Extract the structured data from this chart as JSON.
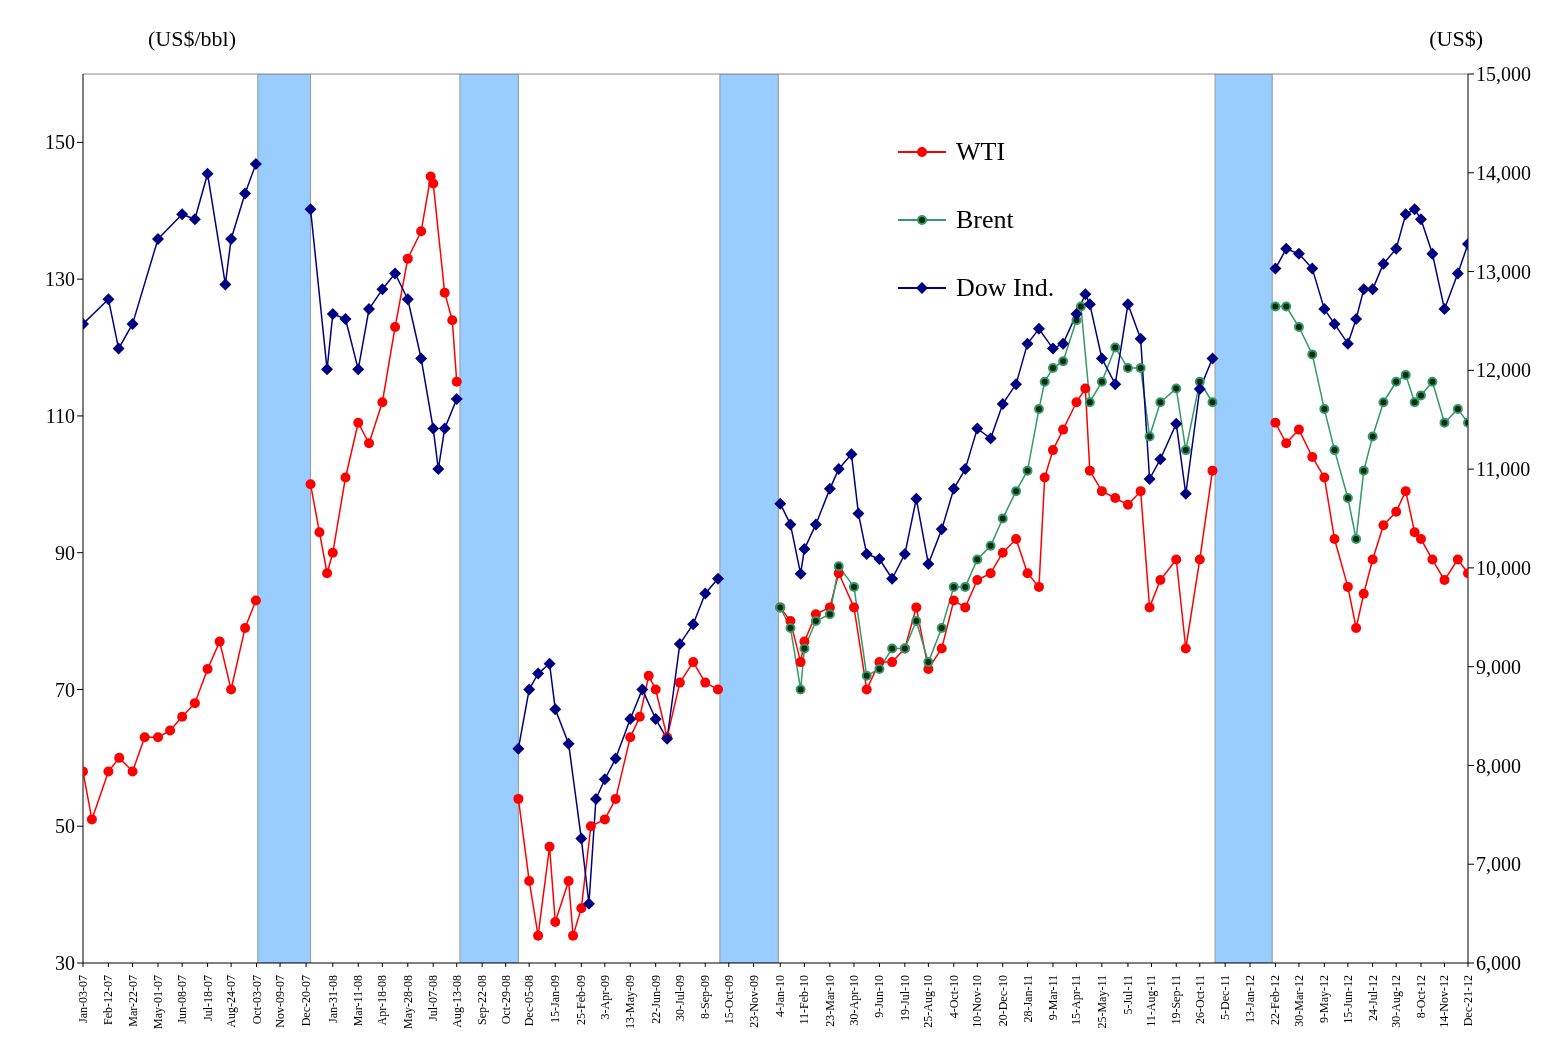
{
  "chart_data": {
    "type": "line",
    "ylabel": "(US$/bbl)",
    "y2label": "(US$)",
    "xlim": [
      "2007-01-03",
      "2012-12-21"
    ],
    "xticks": [
      {
        "value": "2007-01-03",
        "label": "Jan-03-07"
      },
      {
        "value": "2007-02-12",
        "label": "Feb-12-07"
      },
      {
        "value": "2007-03-22",
        "label": "Mar-22-07"
      },
      {
        "value": "2007-05-01",
        "label": "May-01-07"
      },
      {
        "value": "2007-06-08",
        "label": "Jun-08-07"
      },
      {
        "value": "2007-07-18",
        "label": "Jul-18-07"
      },
      {
        "value": "2007-08-24",
        "label": "Aug-24-07"
      },
      {
        "value": "2007-10-03",
        "label": "Oct-03-07"
      },
      {
        "value": "2007-11-09",
        "label": "Nov-09-07"
      },
      {
        "value": "2007-12-20",
        "label": "Dec-20-07"
      },
      {
        "value": "2008-01-31",
        "label": "Jan-31-08"
      },
      {
        "value": "2008-03-11",
        "label": "Mar-11-08"
      },
      {
        "value": "2008-04-18",
        "label": "Apr-18-08"
      },
      {
        "value": "2008-05-28",
        "label": "May-28-08"
      },
      {
        "value": "2008-07-07",
        "label": "Jul-07-08"
      },
      {
        "value": "2008-08-13",
        "label": "Aug-13-08"
      },
      {
        "value": "2008-09-22",
        "label": "Sep-22-08"
      },
      {
        "value": "2008-10-29",
        "label": "Oct-29-08"
      },
      {
        "value": "2008-12-05",
        "label": "Dec-05-08"
      },
      {
        "value": "2009-01-15",
        "label": "15-Jan-09"
      },
      {
        "value": "2009-02-25",
        "label": "25-Feb-09"
      },
      {
        "value": "2009-04-03",
        "label": "3-Apr-09"
      },
      {
        "value": "2009-05-13",
        "label": "13-May-09"
      },
      {
        "value": "2009-06-22",
        "label": "22-Jun-09"
      },
      {
        "value": "2009-07-30",
        "label": "30-Jul-09"
      },
      {
        "value": "2009-09-08",
        "label": "8-Sep-09"
      },
      {
        "value": "2009-10-15",
        "label": "15-Oct-09"
      },
      {
        "value": "2009-11-23",
        "label": "23-Nov-09"
      },
      {
        "value": "2010-01-04",
        "label": "4-Jan-10"
      },
      {
        "value": "2010-02-11",
        "label": "11-Feb-10"
      },
      {
        "value": "2010-03-23",
        "label": "23-Mar-10"
      },
      {
        "value": "2010-04-30",
        "label": "30-Apr-10"
      },
      {
        "value": "2010-06-09",
        "label": "9-Jun-10"
      },
      {
        "value": "2010-07-19",
        "label": "19-Jul-10"
      },
      {
        "value": "2010-08-25",
        "label": "25-Aug-10"
      },
      {
        "value": "2010-10-04",
        "label": "4-Oct-10"
      },
      {
        "value": "2010-11-10",
        "label": "10-Nov-10"
      },
      {
        "value": "2010-12-20",
        "label": "20-Dec-10"
      },
      {
        "value": "2011-01-28",
        "label": "28-Jan-11"
      },
      {
        "value": "2011-03-09",
        "label": "9-Mar-11"
      },
      {
        "value": "2011-04-15",
        "label": "15-Apr-11"
      },
      {
        "value": "2011-05-25",
        "label": "25-May-11"
      },
      {
        "value": "2011-07-05",
        "label": "5-Jul-11"
      },
      {
        "value": "2011-08-11",
        "label": "11-Aug-11"
      },
      {
        "value": "2011-09-19",
        "label": "19-Sep-11"
      },
      {
        "value": "2011-10-26",
        "label": "26-Oct-11"
      },
      {
        "value": "2011-12-05",
        "label": "5-Dec-11"
      },
      {
        "value": "2012-01-13",
        "label": "13-Jan-12"
      },
      {
        "value": "2012-02-22",
        "label": "22-Feb-12"
      },
      {
        "value": "2012-03-30",
        "label": "30-Mar-12"
      },
      {
        "value": "2012-05-09",
        "label": "9-May-12"
      },
      {
        "value": "2012-06-15",
        "label": "15-Jun-12"
      },
      {
        "value": "2012-07-24",
        "label": "24-Jul-12"
      },
      {
        "value": "2012-08-30",
        "label": "30-Aug-12"
      },
      {
        "value": "2012-10-08",
        "label": "8-Oct-12"
      },
      {
        "value": "2012-11-14",
        "label": "14-Nov-12"
      },
      {
        "value": "2012-12-21",
        "label": "Dec-21-12"
      }
    ],
    "ylim": [
      30,
      160
    ],
    "yticks": [
      30,
      50,
      70,
      90,
      110,
      130,
      150
    ],
    "y2lim": [
      6000,
      15000
    ],
    "y2ticks": [
      {
        "value": 6000,
        "label": "6,000"
      },
      {
        "value": 7000,
        "label": "7,000"
      },
      {
        "value": 8000,
        "label": "8,000"
      },
      {
        "value": 9000,
        "label": "9,000"
      },
      {
        "value": 10000,
        "label": "10,000"
      },
      {
        "value": 11000,
        "label": "11,000"
      },
      {
        "value": 12000,
        "label": "12,000"
      },
      {
        "value": 13000,
        "label": "13,000"
      },
      {
        "value": 14000,
        "label": "14,000"
      },
      {
        "value": 15000,
        "label": "15,000"
      }
    ],
    "grid": false,
    "legend": "top",
    "line_style": "solid",
    "bands": [
      {
        "axis": "x",
        "from": "2007-10-05",
        "to": "2007-12-27",
        "color": "#99ccff"
      },
      {
        "axis": "x",
        "from": "2008-08-18",
        "to": "2008-11-18",
        "color": "#99ccff"
      },
      {
        "axis": "x",
        "from": "2009-10-01",
        "to": "2010-01-01",
        "color": "#99ccff"
      },
      {
        "axis": "x",
        "from": "2011-11-19",
        "to": "2012-02-17",
        "color": "#99ccff"
      }
    ],
    "series": [
      {
        "name": "WTI",
        "color": "#ff0000",
        "marker": "circle",
        "axis": "y",
        "x": [
          "2007-01-03",
          "2007-01-17",
          "2007-02-12",
          "2007-03-01",
          "2007-03-22",
          "2007-04-10",
          "2007-05-01",
          "2007-05-20",
          "2007-06-08",
          "2007-06-28",
          "2007-07-18",
          "2007-08-06",
          "2007-08-24",
          "2007-09-15",
          "2007-10-02",
          "2007-11-09",
          "2007-12-27",
          "2008-01-10",
          "2008-01-22",
          "2008-01-31",
          "2008-02-20",
          "2008-03-11",
          "2008-03-28",
          "2008-04-18",
          "2008-05-08",
          "2008-05-28",
          "2008-06-18",
          "2008-07-03",
          "2008-07-07",
          "2008-07-25",
          "2008-08-06",
          "2008-08-13",
          "2008-10-01",
          "2008-11-18",
          "2008-12-05",
          "2008-12-19",
          "2009-01-06",
          "2009-01-15",
          "2009-02-05",
          "2009-02-12",
          "2009-02-25",
          "2009-03-12",
          "2009-04-03",
          "2009-04-20",
          "2009-05-13",
          "2009-05-28",
          "2009-06-11",
          "2009-06-22",
          "2009-07-10",
          "2009-07-30",
          "2009-08-20",
          "2009-09-08",
          "2009-09-28",
          "2009-11-15",
          "2010-01-04",
          "2010-01-20",
          "2010-02-05",
          "2010-02-11",
          "2010-03-01",
          "2010-03-23",
          "2010-04-06",
          "2010-04-30",
          "2010-05-20",
          "2010-06-09",
          "2010-06-29",
          "2010-07-19",
          "2010-08-06",
          "2010-08-25",
          "2010-09-15",
          "2010-10-04",
          "2010-10-22",
          "2010-11-10",
          "2010-12-01",
          "2010-12-20",
          "2011-01-10",
          "2011-01-28",
          "2011-02-15",
          "2011-02-24",
          "2011-03-09",
          "2011-03-25",
          "2011-04-15",
          "2011-04-29",
          "2011-05-06",
          "2011-05-25",
          "2011-06-15",
          "2011-07-05",
          "2011-07-25",
          "2011-08-08",
          "2011-08-25",
          "2011-09-19",
          "2011-10-04",
          "2011-10-26",
          "2011-11-15",
          "2011-12-30",
          "2012-02-22",
          "2012-03-10",
          "2012-03-30",
          "2012-04-20",
          "2012-05-09",
          "2012-05-25",
          "2012-06-15",
          "2012-06-28",
          "2012-07-10",
          "2012-07-24",
          "2012-08-10",
          "2012-08-30",
          "2012-09-14",
          "2012-09-28",
          "2012-10-08",
          "2012-10-26",
          "2012-11-14",
          "2012-12-05",
          "2012-12-21"
        ],
        "values": [
          58,
          51,
          58,
          60,
          58,
          63,
          63,
          64,
          66,
          68,
          73,
          77,
          70,
          79,
          83,
          null,
          100,
          93,
          87,
          90,
          101,
          109,
          106,
          112,
          123,
          133,
          137,
          145,
          144,
          128,
          124,
          115,
          null,
          54,
          42,
          34,
          47,
          36,
          42,
          34,
          38,
          50,
          51,
          54,
          63,
          66,
          72,
          70,
          63,
          71,
          74,
          71,
          70,
          null,
          82,
          80,
          74,
          77,
          81,
          82,
          87,
          82,
          70,
          74,
          74,
          76,
          82,
          73,
          76,
          83,
          82,
          86,
          87,
          90,
          92,
          87,
          85,
          101,
          105,
          108,
          112,
          114,
          102,
          99,
          98,
          97,
          99,
          82,
          86,
          89,
          76,
          89,
          102,
          null,
          109,
          106,
          108,
          104,
          101,
          92,
          85,
          79,
          84,
          89,
          94,
          96,
          99,
          93,
          92,
          89,
          86,
          89,
          87
        ]
      },
      {
        "name": "Brent",
        "color": "#339966",
        "marker": "circle",
        "axis": "y",
        "x": [
          "2010-01-04",
          "2010-01-20",
          "2010-02-05",
          "2010-02-11",
          "2010-03-01",
          "2010-03-23",
          "2010-04-06",
          "2010-04-30",
          "2010-05-20",
          "2010-06-09",
          "2010-06-29",
          "2010-07-19",
          "2010-08-06",
          "2010-08-25",
          "2010-09-15",
          "2010-10-04",
          "2010-10-22",
          "2010-11-10",
          "2010-12-01",
          "2010-12-20",
          "2011-01-10",
          "2011-01-28",
          "2011-02-15",
          "2011-02-24",
          "2011-03-09",
          "2011-03-25",
          "2011-04-15",
          "2011-04-22",
          "2011-05-06",
          "2011-05-25",
          "2011-06-15",
          "2011-07-05",
          "2011-07-25",
          "2011-08-08",
          "2011-08-25",
          "2011-09-19",
          "2011-10-04",
          "2011-10-26",
          "2011-11-15",
          "2011-12-30",
          "2012-02-22",
          "2012-03-10",
          "2012-03-30",
          "2012-04-20",
          "2012-05-09",
          "2012-05-25",
          "2012-06-15",
          "2012-06-28",
          "2012-07-10",
          "2012-07-24",
          "2012-08-10",
          "2012-08-30",
          "2012-09-14",
          "2012-09-28",
          "2012-10-08",
          "2012-10-26",
          "2012-11-14",
          "2012-12-05",
          "2012-12-21"
        ],
        "values": [
          82,
          79,
          70,
          76,
          80,
          81,
          88,
          85,
          72,
          73,
          76,
          76,
          80,
          74,
          79,
          85,
          85,
          89,
          91,
          95,
          99,
          102,
          111,
          115,
          117,
          118,
          124,
          126,
          112,
          115,
          120,
          117,
          117,
          107,
          112,
          114,
          105,
          115,
          112,
          null,
          126,
          126,
          123,
          119,
          111,
          105,
          98,
          92,
          102,
          107,
          112,
          115,
          116,
          112,
          113,
          115,
          109,
          111,
          109
        ]
      },
      {
        "name": "Dow Ind.",
        "color": "#000080",
        "marker": "diamond",
        "axis": "y2",
        "x": [
          "2007-01-03",
          "2007-02-12",
          "2007-02-28",
          "2007-03-22",
          "2007-05-01",
          "2007-06-08",
          "2007-06-28",
          "2007-07-18",
          "2007-08-15",
          "2007-08-24",
          "2007-09-15",
          "2007-10-02",
          "2007-11-09",
          "2007-12-27",
          "2008-01-22",
          "2008-01-31",
          "2008-02-20",
          "2008-03-11",
          "2008-03-28",
          "2008-04-18",
          "2008-05-08",
          "2008-05-28",
          "2008-06-18",
          "2008-07-07",
          "2008-07-15",
          "2008-07-25",
          "2008-08-13",
          "2008-10-01",
          "2008-11-18",
          "2008-12-05",
          "2008-12-19",
          "2009-01-06",
          "2009-01-15",
          "2009-02-05",
          "2009-02-25",
          "2009-03-09",
          "2009-03-20",
          "2009-04-03",
          "2009-04-20",
          "2009-05-13",
          "2009-06-01",
          "2009-06-22",
          "2009-07-10",
          "2009-07-30",
          "2009-08-20",
          "2009-09-08",
          "2009-09-28",
          "2009-11-15",
          "2010-01-04",
          "2010-01-20",
          "2010-02-05",
          "2010-02-11",
          "2010-03-01",
          "2010-03-23",
          "2010-04-06",
          "2010-04-26",
          "2010-05-07",
          "2010-05-20",
          "2010-06-09",
          "2010-06-29",
          "2010-07-19",
          "2010-08-06",
          "2010-08-25",
          "2010-09-15",
          "2010-10-04",
          "2010-10-22",
          "2010-11-10",
          "2010-12-01",
          "2010-12-20",
          "2011-01-10",
          "2011-01-28",
          "2011-02-15",
          "2011-03-09",
          "2011-03-25",
          "2011-04-15",
          "2011-04-29",
          "2011-05-06",
          "2011-05-25",
          "2011-06-15",
          "2011-07-05",
          "2011-07-25",
          "2011-08-08",
          "2011-08-25",
          "2011-09-19",
          "2011-10-04",
          "2011-10-26",
          "2011-11-15",
          "2011-12-30",
          "2012-02-22",
          "2012-03-10",
          "2012-03-30",
          "2012-04-20",
          "2012-05-09",
          "2012-05-25",
          "2012-06-15",
          "2012-06-28",
          "2012-07-10",
          "2012-07-24",
          "2012-08-10",
          "2012-08-30",
          "2012-09-14",
          "2012-09-28",
          "2012-10-08",
          "2012-10-26",
          "2012-11-14",
          "2012-12-05",
          "2012-12-21"
        ],
        "values": [
          12470,
          12720,
          12220,
          12470,
          13330,
          13580,
          13530,
          13990,
          12870,
          13330,
          13790,
          14090,
          null,
          13630,
          12010,
          12570,
          12520,
          12010,
          12620,
          12820,
          12980,
          12720,
          12120,
          11410,
          11000,
          11410,
          11710,
          null,
          8170,
          8770,
          8930,
          9030,
          8570,
          8220,
          7260,
          6600,
          7660,
          7860,
          8070,
          8470,
          8770,
          8470,
          8270,
          9230,
          9430,
          9740,
          9890,
          null,
          10650,
          10440,
          9940,
          10190,
          10440,
          10800,
          11000,
          11150,
          10550,
          10140,
          10090,
          9890,
          10140,
          10700,
          10040,
          10390,
          10800,
          11000,
          11410,
          11310,
          11660,
          11860,
          12270,
          12420,
          12220,
          12270,
          12570,
          12770,
          12670,
          12120,
          11860,
          12670,
          12320,
          10900,
          11100,
          11460,
          10750,
          11810,
          12120,
          null,
          13030,
          13230,
          13180,
          13030,
          12620,
          12470,
          12270,
          12520,
          12820,
          12820,
          13080,
          13230,
          13580,
          13630,
          13530,
          13180,
          12620,
          12980,
          13280
        ]
      }
    ]
  }
}
